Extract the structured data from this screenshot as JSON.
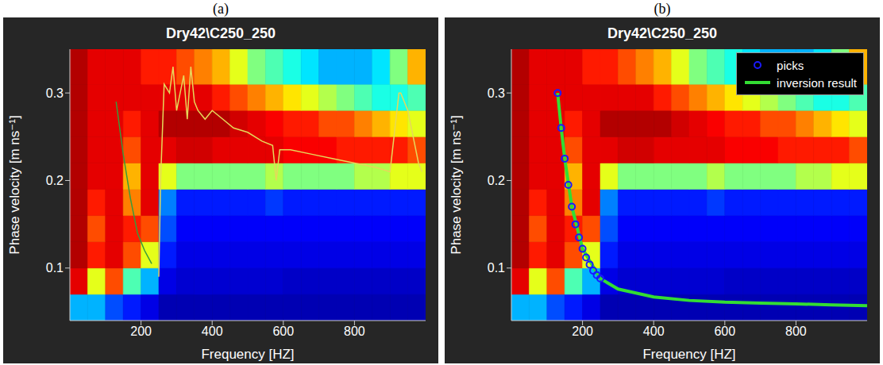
{
  "chart_data": [
    {
      "panel": "(a)",
      "type": "line",
      "title": "Dry42\\C250_250",
      "x_label": "Frequency [HZ]",
      "y_label": "Phase velocity [m ns⁻¹]",
      "xlim": [
        0,
        1000
      ],
      "xticks": [
        200,
        400,
        600,
        800
      ],
      "ylim": [
        0.04,
        0.35
      ],
      "yticks": [
        0.1,
        0.2,
        0.3
      ],
      "grid": false,
      "heatmap": {
        "x": [
          0,
          50,
          100,
          150,
          200,
          250,
          300,
          350,
          400,
          450,
          500,
          550,
          600,
          650,
          700,
          750,
          800,
          850,
          900,
          950,
          1000
        ],
        "y": [
          0.04,
          0.07,
          0.1,
          0.13,
          0.16,
          0.19,
          0.22,
          0.25,
          0.28,
          0.31,
          0.35
        ],
        "cells": [
          [
            0.3,
            0.3,
            0.2,
            0.15,
            0.1,
            0.05,
            0.05,
            0.05,
            0.05,
            0.05,
            0.05,
            0.05,
            0.05,
            0.05,
            0.05,
            0.05,
            0.05,
            0.05,
            0.05,
            0.05
          ],
          [
            0.9,
            0.6,
            0.8,
            0.45,
            0.3,
            0.1,
            0.08,
            0.08,
            0.08,
            0.08,
            0.08,
            0.08,
            0.07,
            0.07,
            0.07,
            0.07,
            0.07,
            0.07,
            0.07,
            0.07
          ],
          [
            0.95,
            0.85,
            0.9,
            0.8,
            0.6,
            0.15,
            0.1,
            0.1,
            0.1,
            0.1,
            0.1,
            0.1,
            0.1,
            0.1,
            0.1,
            0.1,
            0.1,
            0.1,
            0.1,
            0.1
          ],
          [
            0.95,
            0.8,
            0.9,
            0.85,
            0.8,
            0.2,
            0.12,
            0.12,
            0.12,
            0.12,
            0.12,
            0.12,
            0.12,
            0.12,
            0.12,
            0.12,
            0.12,
            0.12,
            0.12,
            0.12
          ],
          [
            0.95,
            0.85,
            0.9,
            0.75,
            0.9,
            0.25,
            0.15,
            0.15,
            0.15,
            0.15,
            0.15,
            0.18,
            0.15,
            0.15,
            0.15,
            0.15,
            0.15,
            0.15,
            0.15,
            0.15
          ],
          [
            0.95,
            0.9,
            0.9,
            0.7,
            0.9,
            0.6,
            0.5,
            0.5,
            0.5,
            0.5,
            0.5,
            0.55,
            0.5,
            0.5,
            0.5,
            0.5,
            0.55,
            0.55,
            0.6,
            0.6
          ],
          [
            0.95,
            0.9,
            0.9,
            0.8,
            0.9,
            0.9,
            0.92,
            0.92,
            0.9,
            0.9,
            0.9,
            0.9,
            0.88,
            0.88,
            0.88,
            0.85,
            0.85,
            0.85,
            0.85,
            0.8
          ],
          [
            0.95,
            0.9,
            0.9,
            0.85,
            0.9,
            0.95,
            0.95,
            0.95,
            0.95,
            0.92,
            0.9,
            0.88,
            0.85,
            0.85,
            0.8,
            0.8,
            0.75,
            0.7,
            0.65,
            0.6
          ],
          [
            0.95,
            0.9,
            0.9,
            0.9,
            0.9,
            0.9,
            0.9,
            0.9,
            0.85,
            0.8,
            0.75,
            0.7,
            0.65,
            0.6,
            0.55,
            0.5,
            0.45,
            0.4,
            0.4,
            0.45
          ],
          [
            0.95,
            0.9,
            0.9,
            0.9,
            0.85,
            0.85,
            0.8,
            0.75,
            0.7,
            0.6,
            0.5,
            0.45,
            0.4,
            0.35,
            0.3,
            0.3,
            0.3,
            0.35,
            0.5,
            0.7
          ]
        ]
      },
      "series": [
        {
          "type": "line",
          "color": "#3a9a3a",
          "line_style": "solid",
          "x": [
            130,
            150,
            170,
            190,
            210,
            230
          ],
          "values": [
            0.29,
            0.23,
            0.18,
            0.14,
            0.12,
            0.105
          ]
        },
        {
          "type": "line",
          "color": "#e6d85a",
          "line_style": "solid",
          "x": [
            250,
            255,
            265,
            280,
            290,
            300,
            310,
            320,
            330,
            340,
            350,
            360,
            380,
            400,
            430,
            460,
            500,
            540,
            570,
            580,
            590,
            620,
            680,
            740,
            800,
            860,
            900,
            925,
            930,
            950,
            980,
            990
          ],
          "values": [
            0.09,
            0.2,
            0.31,
            0.3,
            0.33,
            0.28,
            0.3,
            0.32,
            0.27,
            0.33,
            0.29,
            0.28,
            0.27,
            0.28,
            0.27,
            0.26,
            0.255,
            0.245,
            0.24,
            0.2,
            0.235,
            0.235,
            0.23,
            0.225,
            0.22,
            0.215,
            0.21,
            0.3,
            0.3,
            0.28,
            0.22,
            0.21
          ]
        }
      ]
    },
    {
      "panel": "(b)",
      "type": "line",
      "title": "Dry42\\C250_250",
      "x_label": "Frequency [HZ]",
      "y_label": "Phase velocity [m ns⁻¹]",
      "xlim": [
        0,
        1000
      ],
      "xticks": [
        200,
        400,
        600,
        800
      ],
      "ylim": [
        0.04,
        0.35
      ],
      "yticks": [
        0.1,
        0.2,
        0.3
      ],
      "grid": false,
      "legend": "upper right",
      "heatmap": {
        "x": [
          0,
          50,
          100,
          150,
          200,
          250,
          300,
          350,
          400,
          450,
          500,
          550,
          600,
          650,
          700,
          750,
          800,
          850,
          900,
          950,
          1000
        ],
        "y": [
          0.04,
          0.07,
          0.1,
          0.13,
          0.16,
          0.19,
          0.22,
          0.25,
          0.28,
          0.31,
          0.35
        ],
        "cells": [
          [
            0.3,
            0.3,
            0.2,
            0.15,
            0.1,
            0.05,
            0.05,
            0.05,
            0.05,
            0.05,
            0.05,
            0.05,
            0.05,
            0.05,
            0.05,
            0.05,
            0.05,
            0.05,
            0.05,
            0.05
          ],
          [
            0.9,
            0.6,
            0.8,
            0.45,
            0.3,
            0.1,
            0.08,
            0.08,
            0.08,
            0.08,
            0.08,
            0.08,
            0.07,
            0.07,
            0.07,
            0.07,
            0.07,
            0.07,
            0.07,
            0.07
          ],
          [
            0.95,
            0.85,
            0.9,
            0.8,
            0.6,
            0.15,
            0.1,
            0.1,
            0.1,
            0.1,
            0.1,
            0.1,
            0.1,
            0.1,
            0.1,
            0.1,
            0.1,
            0.1,
            0.1,
            0.1
          ],
          [
            0.95,
            0.8,
            0.9,
            0.85,
            0.8,
            0.2,
            0.12,
            0.12,
            0.12,
            0.12,
            0.12,
            0.12,
            0.12,
            0.12,
            0.12,
            0.12,
            0.12,
            0.12,
            0.12,
            0.12
          ],
          [
            0.95,
            0.85,
            0.9,
            0.75,
            0.9,
            0.25,
            0.15,
            0.15,
            0.15,
            0.15,
            0.15,
            0.18,
            0.15,
            0.15,
            0.15,
            0.15,
            0.15,
            0.15,
            0.15,
            0.15
          ],
          [
            0.95,
            0.9,
            0.9,
            0.7,
            0.9,
            0.6,
            0.5,
            0.5,
            0.5,
            0.5,
            0.5,
            0.55,
            0.5,
            0.5,
            0.5,
            0.5,
            0.55,
            0.55,
            0.6,
            0.6
          ],
          [
            0.95,
            0.9,
            0.9,
            0.8,
            0.9,
            0.9,
            0.92,
            0.92,
            0.9,
            0.9,
            0.9,
            0.9,
            0.88,
            0.88,
            0.88,
            0.85,
            0.85,
            0.85,
            0.85,
            0.8
          ],
          [
            0.95,
            0.9,
            0.9,
            0.85,
            0.9,
            0.95,
            0.95,
            0.95,
            0.95,
            0.92,
            0.9,
            0.88,
            0.85,
            0.85,
            0.8,
            0.8,
            0.75,
            0.7,
            0.65,
            0.6
          ],
          [
            0.95,
            0.9,
            0.9,
            0.9,
            0.9,
            0.9,
            0.9,
            0.9,
            0.85,
            0.8,
            0.75,
            0.7,
            0.65,
            0.6,
            0.55,
            0.5,
            0.45,
            0.4,
            0.4,
            0.45
          ],
          [
            0.95,
            0.9,
            0.9,
            0.9,
            0.85,
            0.85,
            0.8,
            0.75,
            0.7,
            0.6,
            0.5,
            0.45,
            0.4,
            0.35,
            0.3,
            0.3,
            0.3,
            0.35,
            0.5,
            0.7
          ]
        ]
      },
      "series": [
        {
          "name": "picks",
          "type": "scatter",
          "marker": "circle",
          "color": "#1a1aff",
          "x": [
            130,
            140,
            150,
            160,
            170,
            180,
            190,
            200,
            210,
            220,
            230,
            240,
            250
          ],
          "values": [
            0.3,
            0.26,
            0.225,
            0.195,
            0.17,
            0.15,
            0.135,
            0.122,
            0.112,
            0.104,
            0.097,
            0.092,
            0.088
          ]
        },
        {
          "name": "inversion result",
          "type": "line",
          "color": "#33dd33",
          "line_style": "solid",
          "x": [
            130,
            140,
            150,
            170,
            200,
            250,
            300,
            400,
            500,
            600,
            700,
            800,
            900,
            1000
          ],
          "values": [
            0.3,
            0.26,
            0.225,
            0.17,
            0.122,
            0.088,
            0.076,
            0.067,
            0.063,
            0.061,
            0.06,
            0.059,
            0.058,
            0.057
          ]
        }
      ]
    }
  ]
}
